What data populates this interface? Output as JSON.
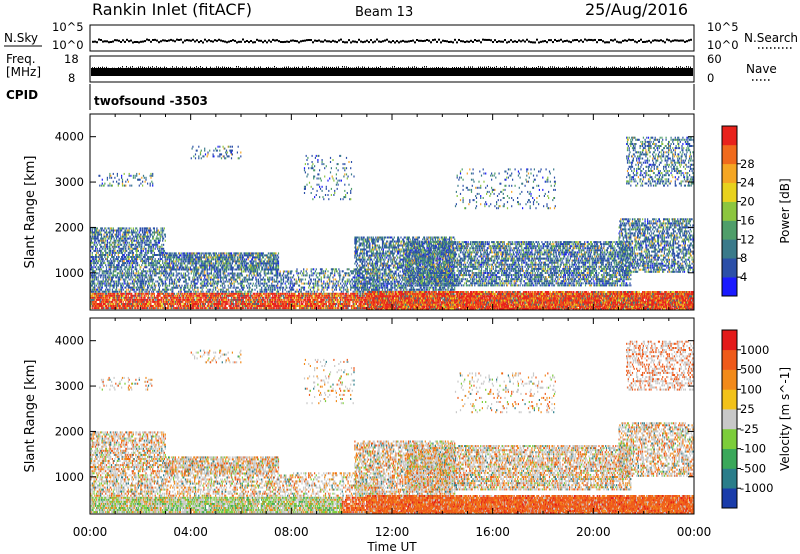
{
  "header": {
    "radar_title": "Rankin Inlet (fitACF)",
    "beam": "Beam 13",
    "date": "25/Aug/2016"
  },
  "top_panels": {
    "nsky_label": "N.Sky",
    "nsearch_label": "N.Search",
    "nsky_ticks": [
      "10^5",
      "10^0"
    ],
    "nsearch_ticks": [
      "10^5",
      "10^0"
    ],
    "freq_label_lines": [
      "Freq.",
      "[MHz]"
    ],
    "freq_ticks": [
      "18",
      "8"
    ],
    "nave_label": "Nave",
    "nave_ticks": [
      "60",
      "0"
    ],
    "cpid_label": "CPID",
    "cpid_value": "twofsound -3503"
  },
  "chart_data": [
    {
      "type": "heatmap",
      "parameter": "Power",
      "ylabel": "Slant Range [km]",
      "yticks": [
        "1000",
        "2000",
        "3000",
        "4000"
      ],
      "ylim": [
        180,
        4500
      ],
      "colorbar_label": "Power [dB]",
      "colorbar_ticks": [
        "4",
        "8",
        "12",
        "16",
        "20",
        "24",
        "28"
      ],
      "colorbar_colors": [
        "#1a1aff",
        "#2b4fa8",
        "#3a7a8a",
        "#4f9e6a",
        "#8cc63f",
        "#e8d21d",
        "#f5a623",
        "#f06a1c",
        "#e8221c"
      ],
      "xlim": [
        0,
        24
      ],
      "xticks": [
        "00:00",
        "04:00",
        "08:00",
        "12:00",
        "16:00",
        "20:00",
        "00:00"
      ]
    },
    {
      "type": "heatmap",
      "parameter": "Velocity",
      "ylabel": "Slant Range [km]",
      "yticks": [
        "1000",
        "2000",
        "3000",
        "4000"
      ],
      "ylim": [
        180,
        4500
      ],
      "colorbar_label": "Velocity [m s^-1]",
      "colorbar_ticks": [
        "1000",
        "500",
        "100",
        "25",
        "-25",
        "-100",
        "-500",
        "-1000"
      ],
      "colorbar_colors": [
        "#1a3caa",
        "#2a7d8a",
        "#3aa85a",
        "#7ccd3a",
        "#c8c8c8",
        "#f2c21a",
        "#f28a1a",
        "#ef5a1a",
        "#e41a1a"
      ],
      "xlim": [
        0,
        24
      ],
      "xticks": [
        "00:00",
        "04:00",
        "08:00",
        "12:00",
        "16:00",
        "20:00",
        "00:00"
      ],
      "xlabel": "Time UT"
    }
  ]
}
